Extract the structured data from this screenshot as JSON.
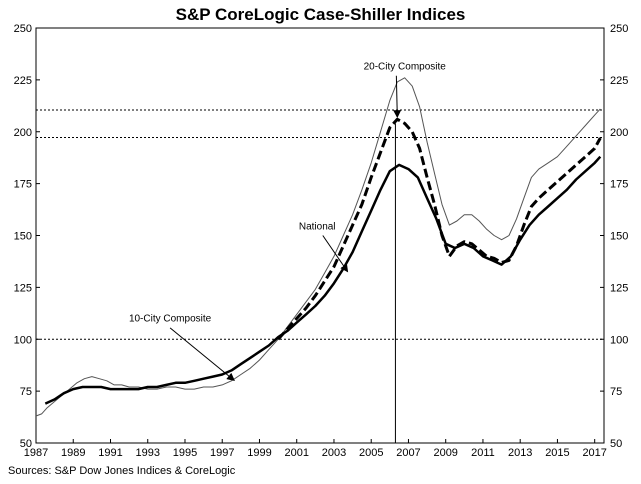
{
  "title": "S&P CoreLogic Case-Shiller Indices",
  "source": "Sources:  S&P Dow Jones Indices & CoreLogic",
  "chart_data": {
    "type": "line",
    "title": "S&P CoreLogic Case-Shiller Indices",
    "ylim": [
      50,
      250
    ],
    "y_ticks": [
      50,
      75,
      100,
      125,
      150,
      175,
      200,
      225,
      250
    ],
    "y_tick_labels": [
      "50",
      "75",
      "100",
      "125",
      "150",
      "175",
      "200",
      "225",
      "250"
    ],
    "xlim": [
      1987,
      2017.5
    ],
    "x_ticks": [
      1987,
      1989,
      1991,
      1993,
      1995,
      1997,
      1999,
      2001,
      2003,
      2005,
      2007,
      2009,
      2011,
      2013,
      2015,
      2017
    ],
    "x_tick_labels": [
      "1987",
      "1989",
      "1991",
      "1993",
      "1995",
      "1997",
      "1999",
      "2001",
      "2003",
      "2005",
      "2007",
      "2009",
      "2011",
      "2013",
      "2015",
      "2017"
    ],
    "grid": false,
    "legend": "none",
    "reference_lines": [
      {
        "y": 210.5,
        "style": "dotted"
      },
      {
        "y": 197.2,
        "style": "dotted"
      },
      {
        "y": 100,
        "style": "dotted"
      }
    ],
    "vertical_line": {
      "x": 2006.3
    },
    "annotations": [
      {
        "text": "20-City Composite",
        "x": 2006.8,
        "y": 230
      },
      {
        "text": "National",
        "x": 2002.1,
        "y": 153
      },
      {
        "text": "10-City Composite",
        "x": 1994.2,
        "y": 108.5
      }
    ],
    "series": [
      {
        "name": "10-City Composite",
        "color": "#555555",
        "style": "thin",
        "points": [
          [
            1987.0,
            63
          ],
          [
            1987.3,
            64
          ],
          [
            1987.6,
            67
          ],
          [
            1988.0,
            70
          ],
          [
            1988.4,
            73
          ],
          [
            1988.8,
            76
          ],
          [
            1989.2,
            79
          ],
          [
            1989.6,
            81
          ],
          [
            1990.0,
            82
          ],
          [
            1990.4,
            81
          ],
          [
            1990.8,
            80
          ],
          [
            1991.2,
            78
          ],
          [
            1991.6,
            78
          ],
          [
            1992.0,
            77
          ],
          [
            1992.5,
            77
          ],
          [
            1993.0,
            76
          ],
          [
            1993.5,
            76
          ],
          [
            1994.0,
            77
          ],
          [
            1994.5,
            77
          ],
          [
            1995.0,
            76
          ],
          [
            1995.5,
            76
          ],
          [
            1996.0,
            77
          ],
          [
            1996.5,
            77
          ],
          [
            1997.0,
            78
          ],
          [
            1997.5,
            80
          ],
          [
            1998.0,
            83
          ],
          [
            1998.5,
            86
          ],
          [
            1999.0,
            90
          ],
          [
            1999.5,
            95
          ],
          [
            2000.0,
            100
          ],
          [
            2000.5,
            106
          ],
          [
            2001.0,
            112
          ],
          [
            2001.5,
            118
          ],
          [
            2002.0,
            124
          ],
          [
            2002.5,
            132
          ],
          [
            2003.0,
            140
          ],
          [
            2003.5,
            150
          ],
          [
            2004.0,
            160
          ],
          [
            2004.5,
            172
          ],
          [
            2005.0,
            185
          ],
          [
            2005.5,
            200
          ],
          [
            2006.0,
            215
          ],
          [
            2006.4,
            224
          ],
          [
            2006.8,
            226
          ],
          [
            2007.2,
            222
          ],
          [
            2007.6,
            212
          ],
          [
            2008.0,
            195
          ],
          [
            2008.4,
            180
          ],
          [
            2008.8,
            165
          ],
          [
            2009.2,
            155
          ],
          [
            2009.6,
            157
          ],
          [
            2010.0,
            160
          ],
          [
            2010.4,
            160
          ],
          [
            2010.8,
            157
          ],
          [
            2011.2,
            153
          ],
          [
            2011.6,
            150
          ],
          [
            2012.0,
            148
          ],
          [
            2012.4,
            150
          ],
          [
            2012.8,
            158
          ],
          [
            2013.2,
            168
          ],
          [
            2013.6,
            178
          ],
          [
            2014.0,
            182
          ],
          [
            2014.5,
            185
          ],
          [
            2015.0,
            188
          ],
          [
            2015.5,
            193
          ],
          [
            2016.0,
            198
          ],
          [
            2016.5,
            203
          ],
          [
            2017.0,
            208
          ],
          [
            2017.3,
            211
          ]
        ]
      },
      {
        "name": "20-City Composite",
        "color": "#000000",
        "style": "dashed",
        "points": [
          [
            2000.0,
            100
          ],
          [
            2000.5,
            105
          ],
          [
            2001.0,
            110
          ],
          [
            2001.5,
            115
          ],
          [
            2002.0,
            121
          ],
          [
            2002.5,
            128
          ],
          [
            2003.0,
            135
          ],
          [
            2003.5,
            145
          ],
          [
            2004.0,
            155
          ],
          [
            2004.5,
            165
          ],
          [
            2005.0,
            178
          ],
          [
            2005.5,
            190
          ],
          [
            2006.0,
            202
          ],
          [
            2006.4,
            206
          ],
          [
            2006.8,
            204
          ],
          [
            2007.2,
            200
          ],
          [
            2007.6,
            192
          ],
          [
            2008.0,
            178
          ],
          [
            2008.4,
            165
          ],
          [
            2008.8,
            150
          ],
          [
            2009.2,
            140
          ],
          [
            2009.6,
            145
          ],
          [
            2010.0,
            147
          ],
          [
            2010.4,
            146
          ],
          [
            2010.8,
            143
          ],
          [
            2011.2,
            140
          ],
          [
            2011.6,
            139
          ],
          [
            2012.0,
            137
          ],
          [
            2012.4,
            138
          ],
          [
            2012.8,
            145
          ],
          [
            2013.2,
            155
          ],
          [
            2013.6,
            164
          ],
          [
            2014.0,
            168
          ],
          [
            2014.5,
            172
          ],
          [
            2015.0,
            176
          ],
          [
            2015.5,
            180
          ],
          [
            2016.0,
            184
          ],
          [
            2016.5,
            188
          ],
          [
            2017.0,
            192
          ],
          [
            2017.3,
            197
          ]
        ]
      },
      {
        "name": "National",
        "color": "#000000",
        "style": "thick",
        "points": [
          [
            1987.5,
            69
          ],
          [
            1988.0,
            71
          ],
          [
            1988.5,
            74
          ],
          [
            1989.0,
            76
          ],
          [
            1989.5,
            77
          ],
          [
            1990.0,
            77
          ],
          [
            1990.5,
            77
          ],
          [
            1991.0,
            76
          ],
          [
            1991.5,
            76
          ],
          [
            1992.0,
            76
          ],
          [
            1992.5,
            76
          ],
          [
            1993.0,
            77
          ],
          [
            1993.5,
            77
          ],
          [
            1994.0,
            78
          ],
          [
            1994.5,
            79
          ],
          [
            1995.0,
            79
          ],
          [
            1995.5,
            80
          ],
          [
            1996.0,
            81
          ],
          [
            1996.5,
            82
          ],
          [
            1997.0,
            83
          ],
          [
            1997.5,
            85
          ],
          [
            1998.0,
            88
          ],
          [
            1998.5,
            91
          ],
          [
            1999.0,
            94
          ],
          [
            1999.5,
            97
          ],
          [
            2000.0,
            101
          ],
          [
            2000.5,
            104
          ],
          [
            2001.0,
            108
          ],
          [
            2001.5,
            112
          ],
          [
            2002.0,
            116
          ],
          [
            2002.5,
            121
          ],
          [
            2003.0,
            127
          ],
          [
            2003.5,
            134
          ],
          [
            2004.0,
            142
          ],
          [
            2004.5,
            152
          ],
          [
            2005.0,
            162
          ],
          [
            2005.5,
            172
          ],
          [
            2006.0,
            181
          ],
          [
            2006.5,
            184
          ],
          [
            2007.0,
            182
          ],
          [
            2007.5,
            178
          ],
          [
            2008.0,
            168
          ],
          [
            2008.5,
            158
          ],
          [
            2009.0,
            146
          ],
          [
            2009.5,
            144
          ],
          [
            2010.0,
            146
          ],
          [
            2010.5,
            144
          ],
          [
            2011.0,
            140
          ],
          [
            2011.5,
            138
          ],
          [
            2012.0,
            136
          ],
          [
            2012.5,
            140
          ],
          [
            2013.0,
            148
          ],
          [
            2013.5,
            155
          ],
          [
            2014.0,
            160
          ],
          [
            2014.5,
            164
          ],
          [
            2015.0,
            168
          ],
          [
            2015.5,
            172
          ],
          [
            2016.0,
            177
          ],
          [
            2016.5,
            181
          ],
          [
            2017.0,
            185
          ],
          [
            2017.3,
            188
          ]
        ]
      }
    ]
  }
}
